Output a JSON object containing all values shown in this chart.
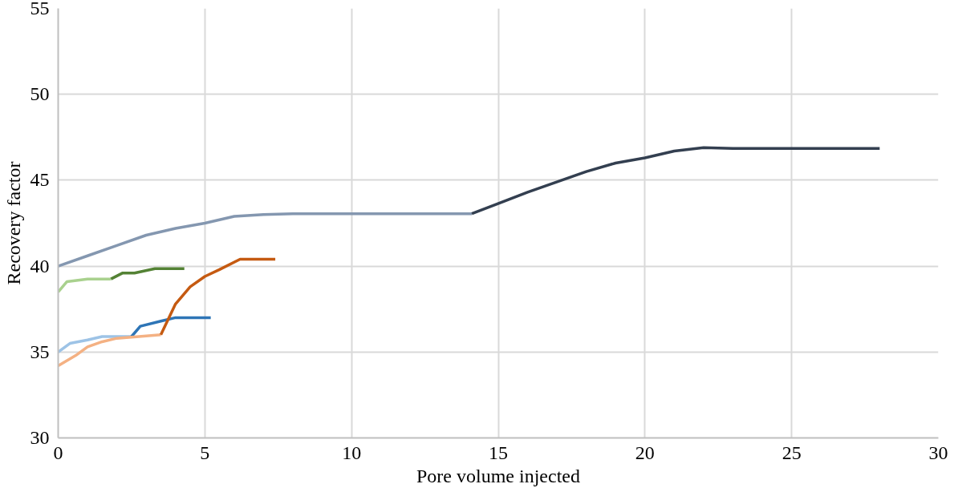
{
  "chart_data": {
    "type": "line",
    "xlabel": "Pore volume injected",
    "ylabel": "Recovery factor",
    "xlim": [
      0,
      30
    ],
    "ylim": [
      30,
      55
    ],
    "xticks": [
      0,
      5,
      10,
      15,
      20,
      25,
      30
    ],
    "yticks": [
      30,
      35,
      40,
      45,
      50,
      55
    ],
    "grid": true,
    "series": [
      {
        "color": "#8497b0",
        "x": [
          0,
          1,
          2,
          3,
          4,
          5,
          6,
          7,
          8,
          14.1
        ],
        "values": [
          40,
          40.6,
          41.2,
          41.8,
          42.2,
          42.5,
          42.9,
          43,
          43.05,
          43.05
        ]
      },
      {
        "color": "#333f50",
        "x": [
          14.1,
          16,
          18,
          19,
          20,
          21,
          22,
          23,
          28
        ],
        "values": [
          43.05,
          44.3,
          45.5,
          46,
          46.3,
          46.7,
          46.9,
          46.85,
          46.85
        ]
      },
      {
        "color": "#a9d18e",
        "x": [
          0,
          0.3,
          1,
          1.8
        ],
        "values": [
          38.5,
          39.1,
          39.25,
          39.25
        ]
      },
      {
        "color": "#548235",
        "x": [
          1.8,
          2.2,
          2.6,
          3.3,
          4.3
        ],
        "values": [
          39.25,
          39.6,
          39.6,
          39.85,
          39.85
        ]
      },
      {
        "color": "#9dc3e6",
        "x": [
          0,
          0.4,
          1,
          1.5,
          2.5
        ],
        "values": [
          35,
          35.5,
          35.7,
          35.9,
          35.9
        ]
      },
      {
        "color": "#2e75b6",
        "x": [
          2.5,
          2.8,
          3.5,
          4,
          5.2
        ],
        "values": [
          35.9,
          36.5,
          36.8,
          37,
          37
        ]
      },
      {
        "color": "#f4b183",
        "x": [
          0,
          0.6,
          1,
          1.5,
          2,
          3.5
        ],
        "values": [
          34.2,
          34.8,
          35.3,
          35.6,
          35.8,
          36
        ]
      },
      {
        "color": "#c55a11",
        "x": [
          3.5,
          4,
          4.5,
          5,
          5.5,
          6.2,
          7.4
        ],
        "values": [
          36,
          37.8,
          38.8,
          39.4,
          39.8,
          40.4,
          40.4
        ]
      }
    ]
  }
}
